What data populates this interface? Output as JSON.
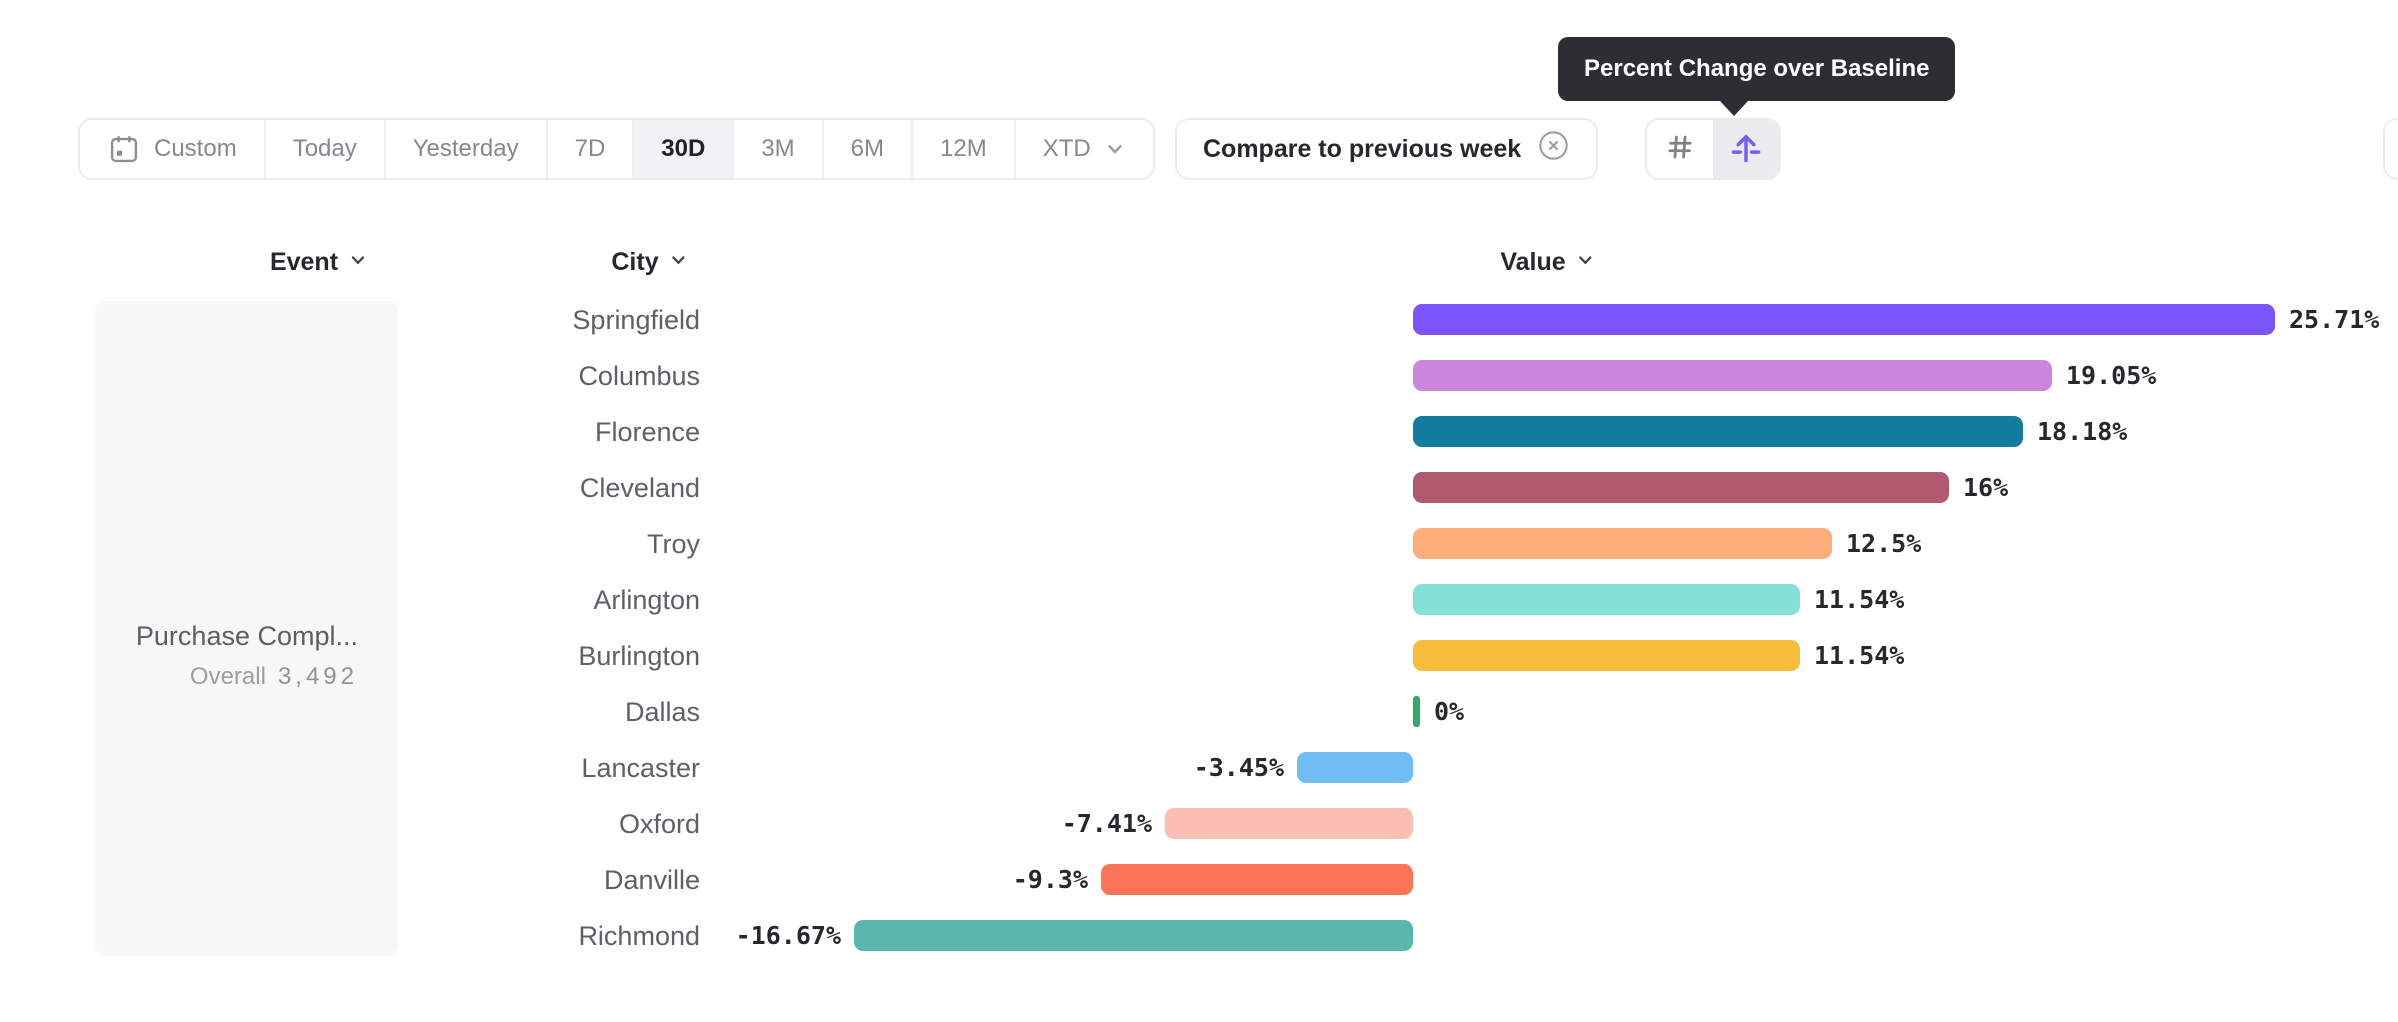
{
  "toolbar": {
    "date_ranges": [
      "Custom",
      "Today",
      "Yesterday",
      "7D",
      "30D",
      "3M",
      "6M",
      "12M",
      "XTD"
    ],
    "selected_range": "30D",
    "compare_label": "Compare to previous week"
  },
  "tooltip": {
    "text": "Percent Change over Baseline"
  },
  "columns": {
    "event": "Event",
    "city": "City",
    "value": "Value"
  },
  "event_panel": {
    "event_name": "Purchase Compl...",
    "metric_label": "Overall",
    "metric_value": "3,492"
  },
  "chart_data": {
    "type": "bar",
    "orientation": "horizontal",
    "value_unit": "percent",
    "series_name": "Percent Change over Baseline",
    "baseline": 0,
    "categories": [
      "Springfield",
      "Columbus",
      "Florence",
      "Cleveland",
      "Troy",
      "Arlington",
      "Burlington",
      "Dallas",
      "Lancaster",
      "Oxford",
      "Danville",
      "Richmond"
    ],
    "values": [
      25.71,
      19.05,
      18.18,
      16,
      12.5,
      11.54,
      11.54,
      0,
      -3.45,
      -7.41,
      -9.3,
      -16.67
    ],
    "labels": [
      "25.71%",
      "19.05%",
      "18.18%",
      "16%",
      "12.5%",
      "11.54%",
      "11.54%",
      "0%",
      "-3.45%",
      "-7.41%",
      "-9.3%",
      "-16.67%"
    ],
    "bar_colors": [
      "#7b55f9",
      "#ca86dd",
      "#147c9f",
      "#b15a6f",
      "#feae7b",
      "#85e0d8",
      "#f6bd3a",
      "#33a96d",
      "#70bcf4",
      "#fcbdb4",
      "#fd7356",
      "#5bb7ac"
    ]
  },
  "colors": {
    "accent": "#7a5bf3",
    "tooltip_bg": "#2c2e34",
    "selected_segment_bg": "#f1f2f4",
    "zero_tick_green": "#33a96d"
  }
}
